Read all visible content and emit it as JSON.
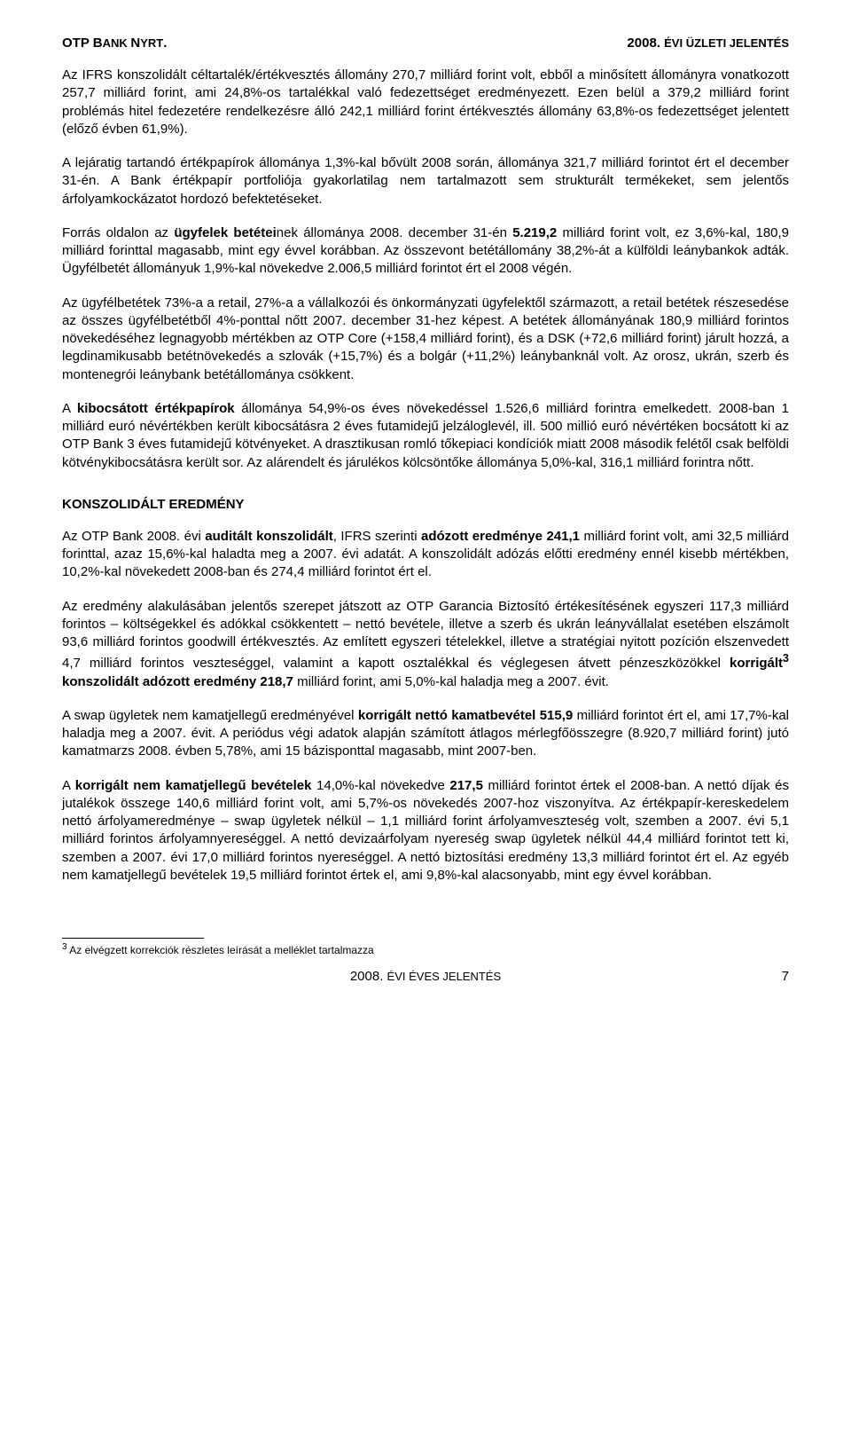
{
  "header": {
    "left_prefix": "OTP B",
    "left_small": "ANK ",
    "left_suffix": "N",
    "left_small2": "YRT",
    "left_dot": ".",
    "right_prefix": "2008. ",
    "right_small": "ÉVI ÜZLETI JELENTÉS"
  },
  "p1": {
    "t1": "Az IFRS konszolidált céltartalék/értékvesztés állomány 270,7 milliárd forint volt, ebből a minősített állományra vonatkozott 257,7 milliárd forint, ami 24,8%-os tartalékkal való fedezettséget eredményezett. Ezen belül a 379,2 milliárd forint problémás hitel fedezetére rendelkezésre álló 242,1 milliárd forint értékvesztés állomány 63,8%-os fedezettséget jelentett (előző évben 61,9%)."
  },
  "p2": {
    "t1": "A lejáratig tartandó értékpapírok állománya 1,3%-kal bővült 2008 során, állománya 321,7 milliárd forintot ért el december 31-én. A Bank értékpapír portfoliója gyakorlatilag nem tartalmazott sem strukturált termékeket, sem jelentős árfolyamkockázatot hordozó befektetéseket."
  },
  "p3": {
    "t1": "Forrás oldalon az ",
    "b1": "ügyfelek betétei",
    "t2": "nek állománya 2008. december 31-én ",
    "b2": "5.219,2",
    "t3": " milliárd forint volt, ez 3,6%-kal, 180,9 milliárd forinttal magasabb, mint egy évvel korábban. Az összevont betétállomány 38,2%-át a külföldi leánybankok adták. Ügyfélbetét állományuk 1,9%-kal növekedve 2.006,5 milliárd forintot ért el 2008 végén."
  },
  "p4": {
    "t1": "Az ügyfélbetétek 73%-a a retail, 27%-a a vállalkozói és önkormányzati ügyfelektől származott, a retail betétek részesedése az összes ügyfélbetétből 4%-ponttal nőtt 2007. december 31-hez képest. A betétek állományának 180,9 milliárd forintos növekedéséhez legnagyobb mértékben az OTP Core (+158,4 milliárd forint), és a DSK (+72,6 milliárd forint) járult hozzá, a legdinamikusabb betétnövekedés a szlovák (+15,7%) és a bolgár (+11,2%) leánybanknál volt. Az orosz, ukrán, szerb és montenegrói leánybank betétállománya csökkent."
  },
  "p5": {
    "t1": "A ",
    "b1": "kibocsátott értékpapírok",
    "t2": " állománya 54,9%-os éves növekedéssel 1.526,6 milliárd forintra emelkedett. 2008-ban 1 milliárd euró névértékben került kibocsátásra 2 éves futamidejű jelzáloglevél, ill. 500 millió euró névértéken bocsátott ki az OTP Bank 3 éves futamidejű kötvényeket. A drasztikusan romló tőkepiaci kondíciók miatt 2008 második felétől csak belföldi kötvénykibocsátásra került sor. Az alárendelt és járulékos kölcsöntőke állománya 5,0%-kal, 316,1 milliárd forintra nőtt."
  },
  "section": "KONSZOLIDÁLT EREDMÉNY",
  "p6": {
    "t1": "Az OTP Bank 2008. évi ",
    "b1": "auditált konszolidált",
    "t2": ", IFRS szerinti ",
    "b2": "adózott eredménye 241,1",
    "t3": " milliárd forint volt, ami 32,5 milliárd forinttal, azaz 15,6%-kal haladta meg a 2007. évi adatát. A konszolidált adózás előtti eredmény ennél kisebb mértékben, 10,2%-kal növekedett 2008-ban és 274,4 milliárd forintot ért el."
  },
  "p7": {
    "t1": "Az eredmény alakulásában jelentős szerepet játszott az OTP Garancia Biztosító értékesítésének egyszeri 117,3 milliárd forintos – költségekkel és adókkal csökkentett – nettó bevétele, illetve a szerb és ukrán leányvállalat esetében elszámolt 93,6 milliárd forintos goodwill értékvesztés. Az említett egyszeri tételekkel, illetve a stratégiai nyitott pozíción elszenvedett 4,7 milliárd forintos veszteséggel, valamint a kapott osztalékkal és véglegesen átvett pénzeszközökkel ",
    "b1": "korrigált",
    "sup": "3",
    "b2": " konszolidált adózott eredmény 218,7",
    "t2": " milliárd forint, ami 5,0%-kal haladja meg a 2007. évit."
  },
  "p8": {
    "t1": "A swap ügyletek nem kamatjellegű eredményével ",
    "b1": "korrigált nettó kamatbevétel 515,9",
    "t2": " milliárd forintot ért el, ami 17,7%-kal haladja meg a 2007. évit. A periódus végi adatok alapján számított átlagos mérlegfőösszegre (8.920,7 milliárd forint) jutó kamatmarzs 2008. évben 5,78%, ami 15 bázisponttal magasabb, mint 2007-ben."
  },
  "p9": {
    "t1": "A ",
    "b1": "korrigált nem kamatjellegű bevételek",
    "t2": " 14,0%-kal növekedve ",
    "b2": "217,5",
    "t3": " milliárd forintot értek el 2008-ban. A nettó díjak és jutalékok összege 140,6 milliárd forint volt, ami 5,7%-os növekedés 2007-hoz viszonyítva. Az értékpapír-kereskedelem nettó árfolyameredménye – swap ügyletek nélkül – 1,1 milliárd forint árfolyamveszteség volt, szemben a 2007. évi 5,1 milliárd forintos árfolyamnyereséggel. A nettó devizaárfolyam nyereség swap ügyletek nélkül 44,4 milliárd forintot tett ki, szemben a 2007. évi 17,0 milliárd forintos nyereséggel. A nettó biztosítási eredmény 13,3 milliárd forintot ért el. Az egyéb nem kamatjellegű bevételek 19,5 milliárd forintot értek el, ami 9,8%-kal alacsonyabb, mint egy évvel korábban."
  },
  "footnote": {
    "sup": "3",
    "text": " Az elvégzett korrekciók részletes leírását a melléklet tartalmazza"
  },
  "footer": {
    "center_prefix": "2008. ",
    "center_small": "ÉVI ÉVES JELENTÉS",
    "page": "7"
  }
}
